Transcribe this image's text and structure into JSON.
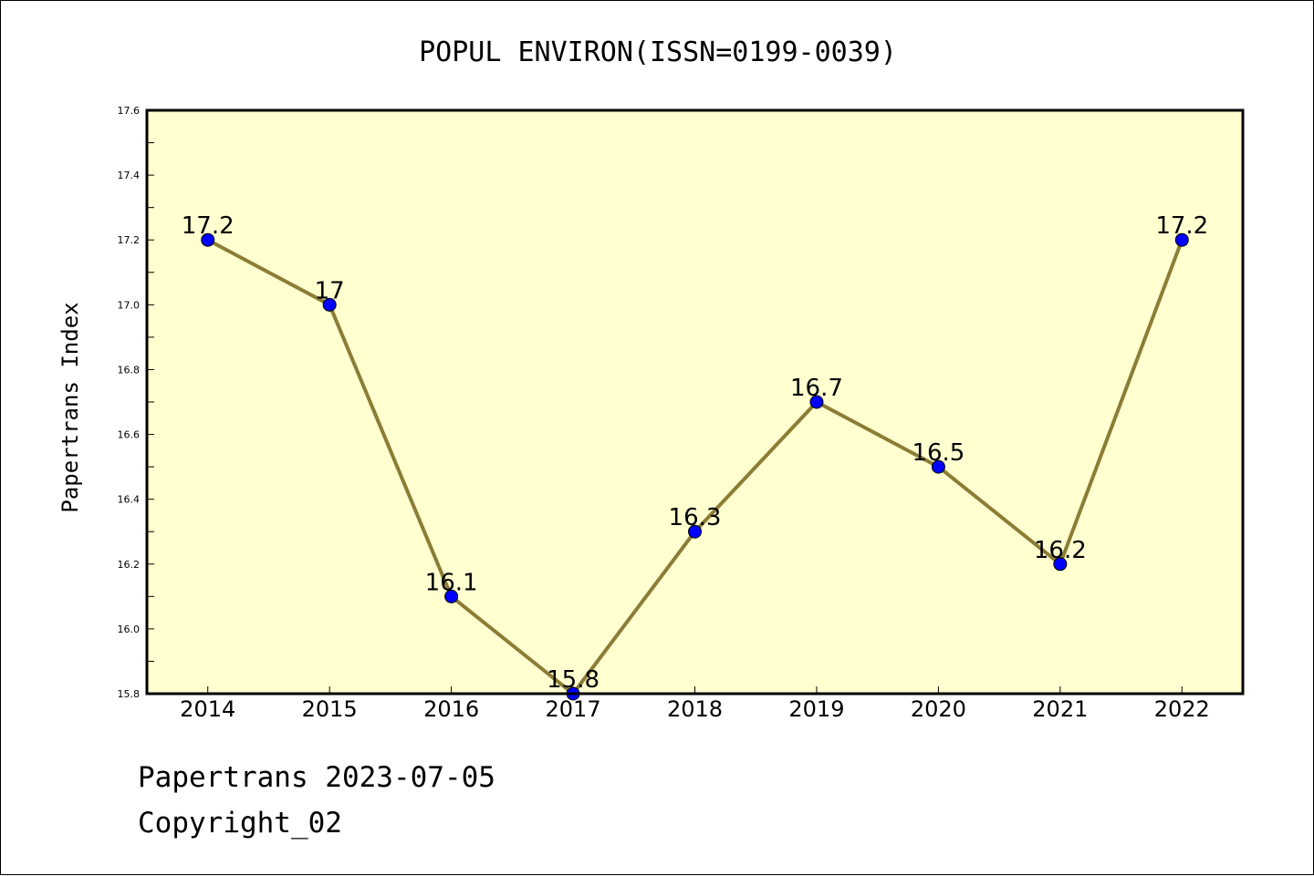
{
  "chart_data": {
    "type": "line",
    "title": "POPUL ENVIRON(ISSN=0199-0039)",
    "ylabel": "Papertrans Index",
    "xlabel": "",
    "categories": [
      "2014",
      "2015",
      "2016",
      "2017",
      "2018",
      "2019",
      "2020",
      "2021",
      "2022"
    ],
    "values": [
      17.2,
      17.0,
      16.1,
      15.8,
      16.3,
      16.7,
      16.5,
      16.2,
      17.2
    ],
    "data_labels": [
      "17.2",
      "17",
      "16.1",
      "15.8",
      "16.3",
      "16.7",
      "16.5",
      "16.2",
      "17.2"
    ],
    "ylim": [
      15.8,
      17.6
    ],
    "yticks": [
      "15.8",
      "16.0",
      "16.2",
      "16.4",
      "16.6",
      "16.8",
      "17.0",
      "17.2",
      "17.4",
      "17.6"
    ],
    "grid": false,
    "legend": "none"
  },
  "colors": {
    "plot_background": "#ffffd0",
    "line": "#8b7d35",
    "marker": "#0000ff"
  },
  "footer": {
    "line1": "Papertrans 2023-07-05",
    "line2": "Copyright_02"
  }
}
